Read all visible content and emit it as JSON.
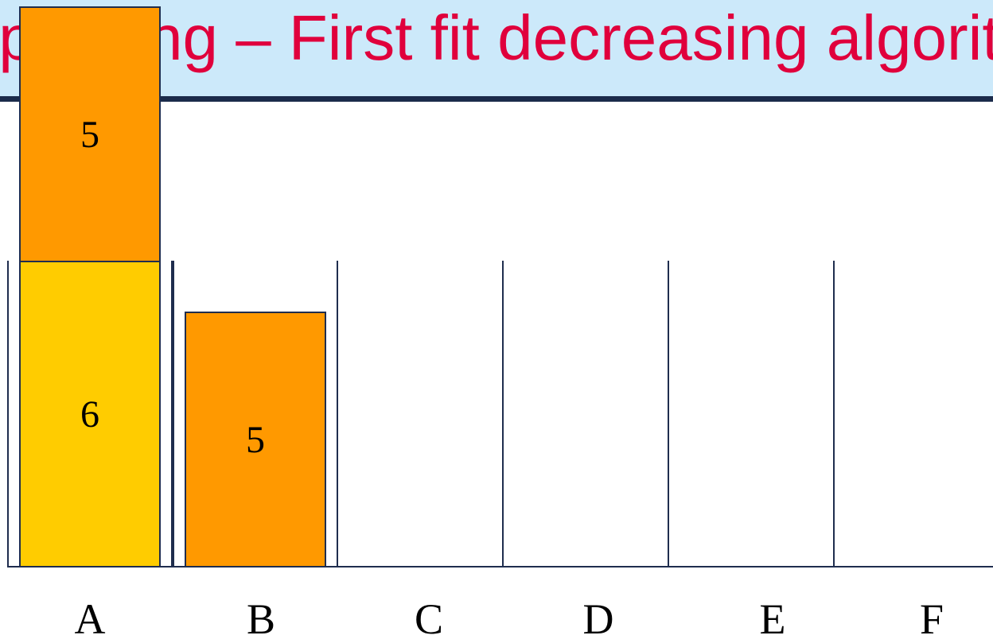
{
  "title": "Bin packing – First fit decreasing algorithm",
  "colors": {
    "header_bg": "#cce9fa",
    "title": "#e0003c",
    "rule": "#1b2b4b",
    "bin_outline": "#1f2d4e",
    "item_orange": "#ff9900",
    "item_yellow": "#ffcc00"
  },
  "bins": [
    {
      "label": "A",
      "items": [
        {
          "value": "6",
          "color": "#ffcc00"
        },
        {
          "value": "5",
          "color": "#ff9900"
        }
      ]
    },
    {
      "label": "B",
      "items": [
        {
          "value": "5",
          "color": "#ff9900"
        }
      ]
    },
    {
      "label": "C",
      "items": []
    },
    {
      "label": "D",
      "items": []
    },
    {
      "label": "E",
      "items": []
    },
    {
      "label": "F",
      "items": []
    }
  ]
}
